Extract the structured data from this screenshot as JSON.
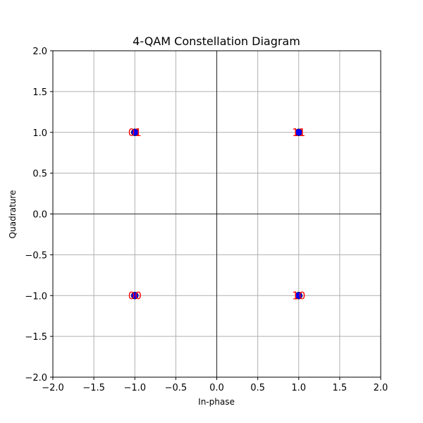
{
  "chart_data": {
    "type": "scatter",
    "title": "4-QAM Constellation Diagram",
    "xlabel": "In-phase",
    "ylabel": "Quadrature",
    "xlim": [
      -2.0,
      2.0
    ],
    "ylim": [
      -2.0,
      2.0
    ],
    "xticks": [
      -2.0,
      -1.5,
      -1.0,
      -0.5,
      0.0,
      0.5,
      1.0,
      1.5,
      2.0
    ],
    "yticks": [
      -2.0,
      -1.5,
      -1.0,
      -0.5,
      0.0,
      0.5,
      1.0,
      1.5,
      2.0
    ],
    "xtick_labels": [
      "−2.0",
      "−1.5",
      "−1.0",
      "−0.5",
      "0.0",
      "0.5",
      "1.0",
      "1.5",
      "2.0"
    ],
    "ytick_labels": [
      "−2.0",
      "−1.5",
      "−1.0",
      "−0.5",
      "0.0",
      "0.5",
      "1.0",
      "1.5",
      "2.0"
    ],
    "grid": true,
    "zero_lines": true,
    "points": [
      {
        "x": -1.0,
        "y": 1.0,
        "label": "01"
      },
      {
        "x": 1.0,
        "y": 1.0,
        "label": "11"
      },
      {
        "x": -1.0,
        "y": -1.0,
        "label": "00"
      },
      {
        "x": 1.0,
        "y": -1.0,
        "label": "10"
      }
    ],
    "colors": {
      "marker": "#0000ff",
      "marker_edge": "#000000",
      "label": "#ff0000",
      "grid": "#b0b0b0",
      "zero_line": "#000000"
    }
  }
}
